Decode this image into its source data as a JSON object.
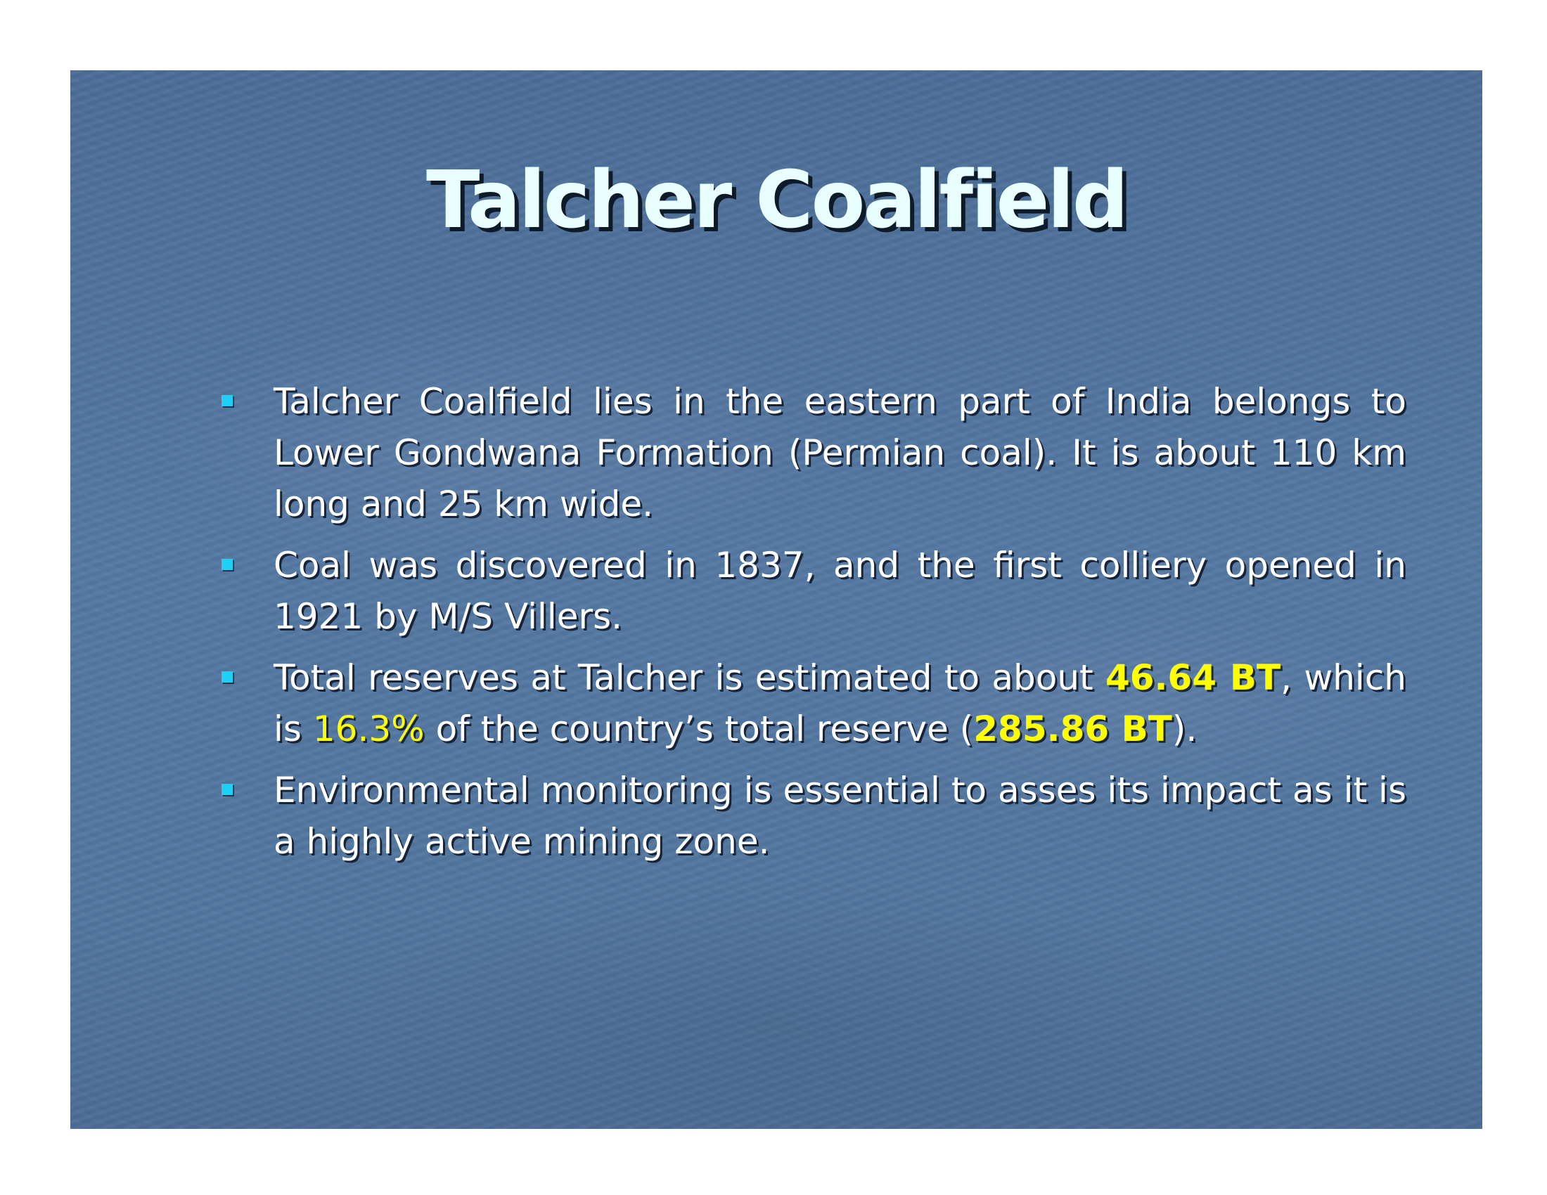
{
  "slide": {
    "title": "Talcher Coalfield",
    "accent_color": "#ffff00",
    "bullet_color": "#1fd0f5",
    "background_color": "#52769f",
    "bullet_icon": "square-bullet-icon",
    "bullets": [
      {
        "text": "Talcher Coalfield lies in the eastern part of India belongs to Lower Gondwana Formation (Permian coal). It is about 110 km long and 25 km wide."
      },
      {
        "text": "Coal was discovered in 1837, and the first colliery opened in 1921 by M/S Villers."
      },
      {
        "part1": "Total reserves at Talcher is estimated to about ",
        "reserve_value": "46.64 BT",
        "part2": ", which is ",
        "share_value": "16.3%",
        "part3": " of the country’s total reserve (",
        "total_value": "285.86 BT",
        "part4": ")."
      },
      {
        "text": "Environmental monitoring is essential to asses its impact as it is a highly active mining zone."
      }
    ]
  }
}
